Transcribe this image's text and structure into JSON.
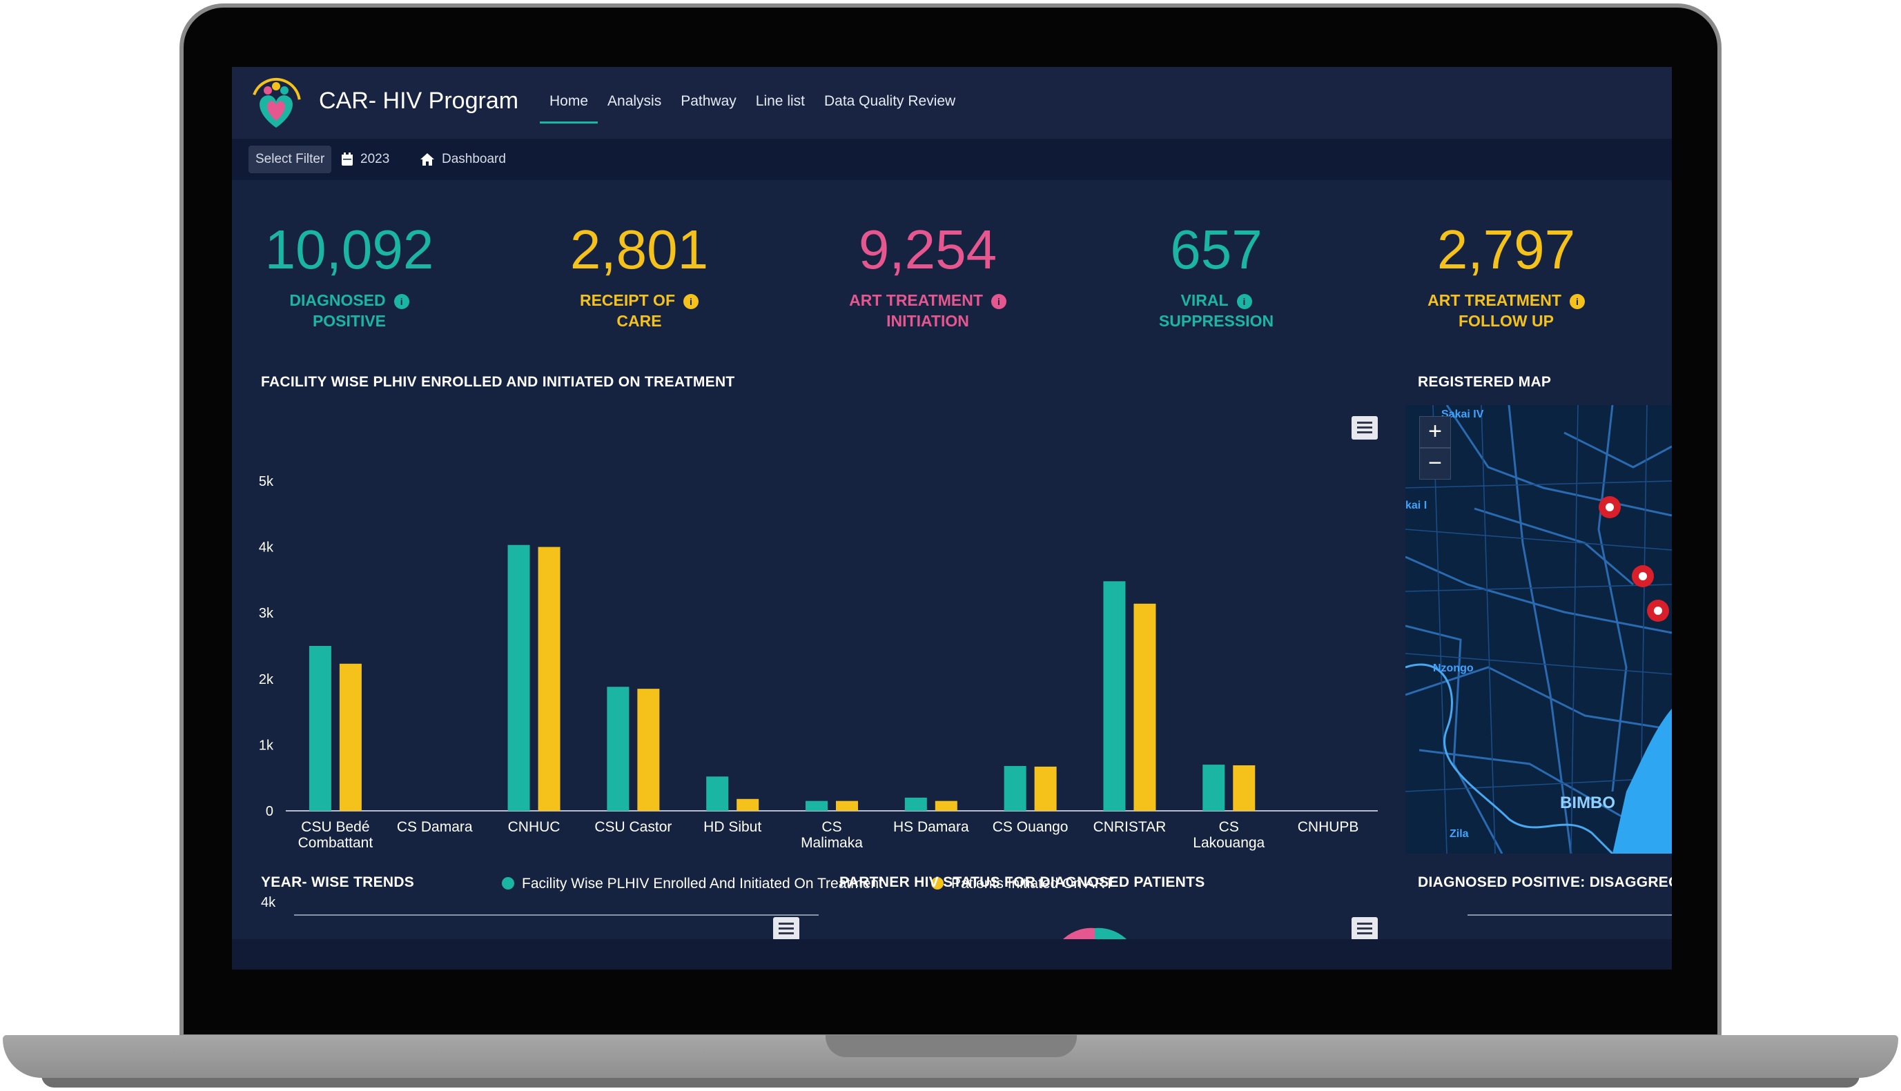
{
  "app": {
    "title": "CAR- HIV Program"
  },
  "nav": {
    "items": [
      {
        "label": "Home",
        "active": true
      },
      {
        "label": "Analysis",
        "active": false
      },
      {
        "label": "Pathway",
        "active": false
      },
      {
        "label": "Line list",
        "active": false
      },
      {
        "label": "Data Quality Review",
        "active": false
      }
    ]
  },
  "subbar": {
    "filter_label": "Select Filter",
    "year": "2023",
    "breadcrumb": "Dashboard"
  },
  "kpis": [
    {
      "value": "10,092",
      "label_line1": "DIAGNOSED",
      "label_line2": "POSITIVE",
      "color": "#1ab6a3"
    },
    {
      "value": "2,801",
      "label_line1": "RECEIPT OF",
      "label_line2": "CARE",
      "color": "#f5c21b"
    },
    {
      "value": "9,254",
      "label_line1": "ART TREATMENT",
      "label_line2": "INITIATION",
      "color": "#e6578f"
    },
    {
      "value": "657",
      "label_line1": "VIRAL",
      "label_line2": "SUPPRESSION",
      "color": "#1ab6a3"
    },
    {
      "value": "2,797",
      "label_line1": "ART TREATMENT",
      "label_line2": "FOLLOW UP",
      "color": "#f5c21b"
    }
  ],
  "sections": {
    "facility_chart_title": "FACILITY WISE PLHIV ENROLLED AND INITIATED ON TREATMENT",
    "map_title": "REGISTERED MAP",
    "year_trends_title": "YEAR- WISE TRENDS",
    "partner_title": "PARTNER HIV STATUS FOR DIAGNOSED PATIENTS",
    "disagg_title": "DIAGNOSED POSITIVE: DISAGGREG",
    "year_trends_tick": "4k"
  },
  "map": {
    "labels": [
      "Sakai IV",
      "kai I",
      "Nzongo",
      "BIMBO",
      "Zila"
    ],
    "zoom_in": "+",
    "zoom_out": "−"
  },
  "chart_data": {
    "type": "bar",
    "categories": [
      [
        "CSU Bedé",
        "Combattant"
      ],
      [
        "CS Damara"
      ],
      [
        "CNHUC"
      ],
      [
        "CSU Castor"
      ],
      [
        "HD Sibut"
      ],
      [
        "CS",
        "Malimaka"
      ],
      [
        "HS Damara"
      ],
      [
        "CS Ouango"
      ],
      [
        "CNRISTAR"
      ],
      [
        "CS",
        "Lakouanga"
      ],
      [
        "CNHUPB"
      ]
    ],
    "series": [
      {
        "name": "Facility Wise PLHIV Enrolled And Initiated On Treatment",
        "color": "#1ab6a3",
        "values": [
          2500,
          0,
          4030,
          1880,
          520,
          150,
          200,
          680,
          3480,
          700,
          0
        ]
      },
      {
        "name": "Patients Initiated On ART",
        "color": "#f5c21b",
        "values": [
          2230,
          0,
          4000,
          1850,
          180,
          150,
          150,
          670,
          3140,
          690,
          0
        ]
      }
    ],
    "ylim": [
      0,
      5000
    ],
    "yticks": [
      "0",
      "1k",
      "2k",
      "3k",
      "4k",
      "5k"
    ],
    "legend": "bottom"
  }
}
